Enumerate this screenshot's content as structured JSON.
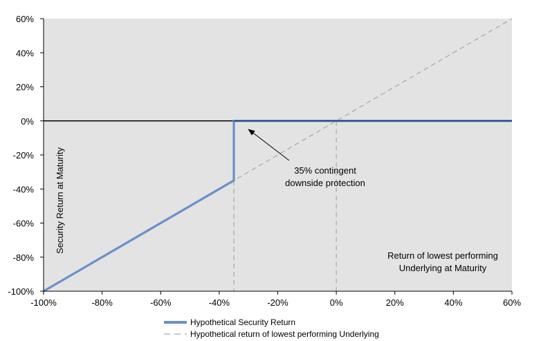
{
  "chart_data": {
    "type": "line",
    "title": "",
    "xlabel": "Return of lowest performing Underlying at Maturity",
    "xlabel_lines": [
      "Return of lowest performing",
      "Underlying at Maturity"
    ],
    "ylabel": "Security Return at Maturity",
    "xlim": [
      -100,
      60
    ],
    "ylim": [
      -100,
      60
    ],
    "x_ticks": [
      -100,
      -80,
      -60,
      -40,
      -20,
      0,
      20,
      40,
      60
    ],
    "y_ticks": [
      -100,
      -80,
      -60,
      -40,
      -20,
      0,
      20,
      40,
      60
    ],
    "x_tick_labels": [
      "-100%",
      "-80%",
      "-60%",
      "-40%",
      "-20%",
      "0%",
      "20%",
      "40%",
      "60%"
    ],
    "y_tick_labels": [
      "-100%",
      "-80%",
      "-60%",
      "-40%",
      "-20%",
      "0%",
      "20%",
      "40%",
      "60%"
    ],
    "grid": false,
    "background_color": "#e3e3e3",
    "series": [
      {
        "name": "Hypothetical Security Return",
        "style": "solid",
        "color": "#6a8fcb",
        "x": [
          -100,
          -35,
          -35,
          60
        ],
        "y": [
          -100,
          -35,
          0,
          0
        ]
      },
      {
        "name": "Hypothetical return of lowest performing Underlying",
        "style": "dashed",
        "color": "#a6a6a6",
        "x": [
          -100,
          60
        ],
        "y": [
          -100,
          60
        ]
      }
    ],
    "reference_lines": [
      {
        "orientation": "horizontal",
        "value": 0,
        "color": "#000000",
        "style": "solid"
      },
      {
        "orientation": "vertical",
        "value": -35,
        "color": "#a6a6a6",
        "style": "dashed"
      },
      {
        "orientation": "vertical",
        "value": 0,
        "color": "#a6a6a6",
        "style": "dashed"
      }
    ],
    "annotation": {
      "text_lines": [
        "35% contingent",
        "downside protection"
      ],
      "arrow_to": [
        -30,
        -5
      ]
    },
    "legend_position": "bottom-left"
  }
}
